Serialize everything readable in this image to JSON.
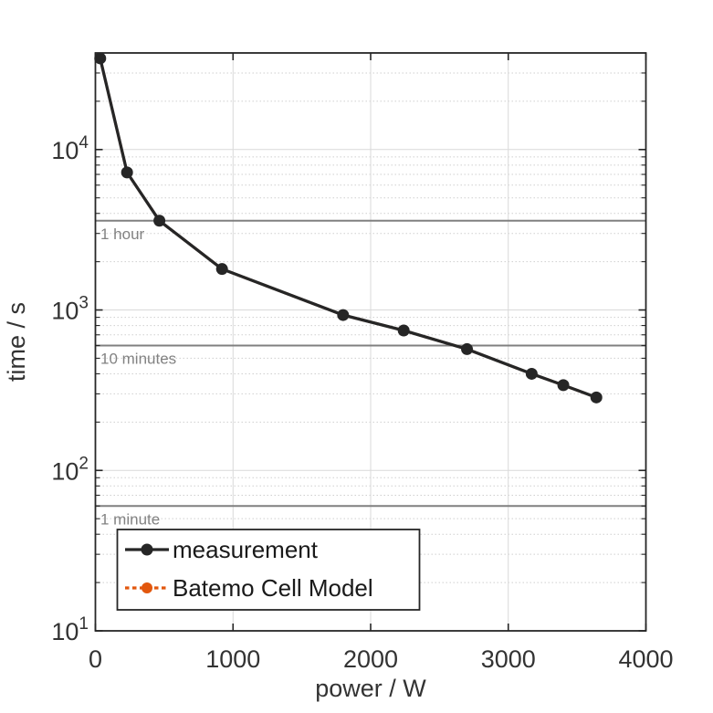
{
  "chart_data": {
    "type": "line",
    "title": "",
    "xlabel": "power / W",
    "ylabel": "time / s",
    "grid": true,
    "x_axis": {
      "scale": "linear",
      "min": 0,
      "max": 4000,
      "ticks": [
        0,
        1000,
        2000,
        3000,
        4000
      ],
      "tick_labels": [
        "0",
        "1000",
        "2000",
        "3000",
        "4000"
      ]
    },
    "y_axis": {
      "scale": "log",
      "min": 10,
      "max": 40000,
      "ticks": [
        10,
        100,
        1000,
        10000
      ],
      "tick_labels": [
        {
          "base": "10",
          "exp": "1"
        },
        {
          "base": "10",
          "exp": "2"
        },
        {
          "base": "10",
          "exp": "3"
        },
        {
          "base": "10",
          "exp": "4"
        }
      ],
      "minor_gridlines": [
        20,
        30,
        40,
        50,
        60,
        70,
        80,
        90,
        200,
        300,
        400,
        500,
        600,
        700,
        800,
        900,
        2000,
        3000,
        4000,
        5000,
        6000,
        7000,
        8000,
        9000,
        20000,
        30000
      ]
    },
    "series": [
      {
        "name": "Batemo Cell Model",
        "color": "#e2570d",
        "line_style": "dotted",
        "marker": "circle",
        "hidden_under_measurement": true,
        "x": [
          35,
          230,
          465,
          920,
          1800,
          2240,
          2700,
          3170,
          3400,
          3640
        ],
        "y": [
          37000,
          7200,
          3600,
          1800,
          930,
          745,
          570,
          400,
          340,
          285
        ]
      },
      {
        "name": "measurement",
        "color": "#262626",
        "line_style": "solid",
        "marker": "circle",
        "x": [
          35,
          230,
          465,
          920,
          1800,
          2240,
          2700,
          3170,
          3400,
          3640
        ],
        "y": [
          37000,
          7200,
          3600,
          1800,
          930,
          745,
          570,
          400,
          340,
          285
        ]
      }
    ],
    "reference_lines": [
      {
        "label": "1 hour",
        "value": 3600
      },
      {
        "label": "10 minutes",
        "value": 600
      },
      {
        "label": "1 minute",
        "value": 60
      }
    ],
    "legend": {
      "position": "south-west",
      "entries": [
        "measurement",
        "Batemo Cell Model"
      ]
    },
    "colors": {
      "axis": "#262626",
      "tick_text": "#333333",
      "grid_major": "#d9d9d9",
      "grid_minor": "#cfcfcf",
      "reference_line": "#808080",
      "annotation_text": "#828282",
      "measurement": "#262626",
      "model": "#e2570d",
      "legend_border": "#262626",
      "legend_background": "#ffffff"
    }
  }
}
